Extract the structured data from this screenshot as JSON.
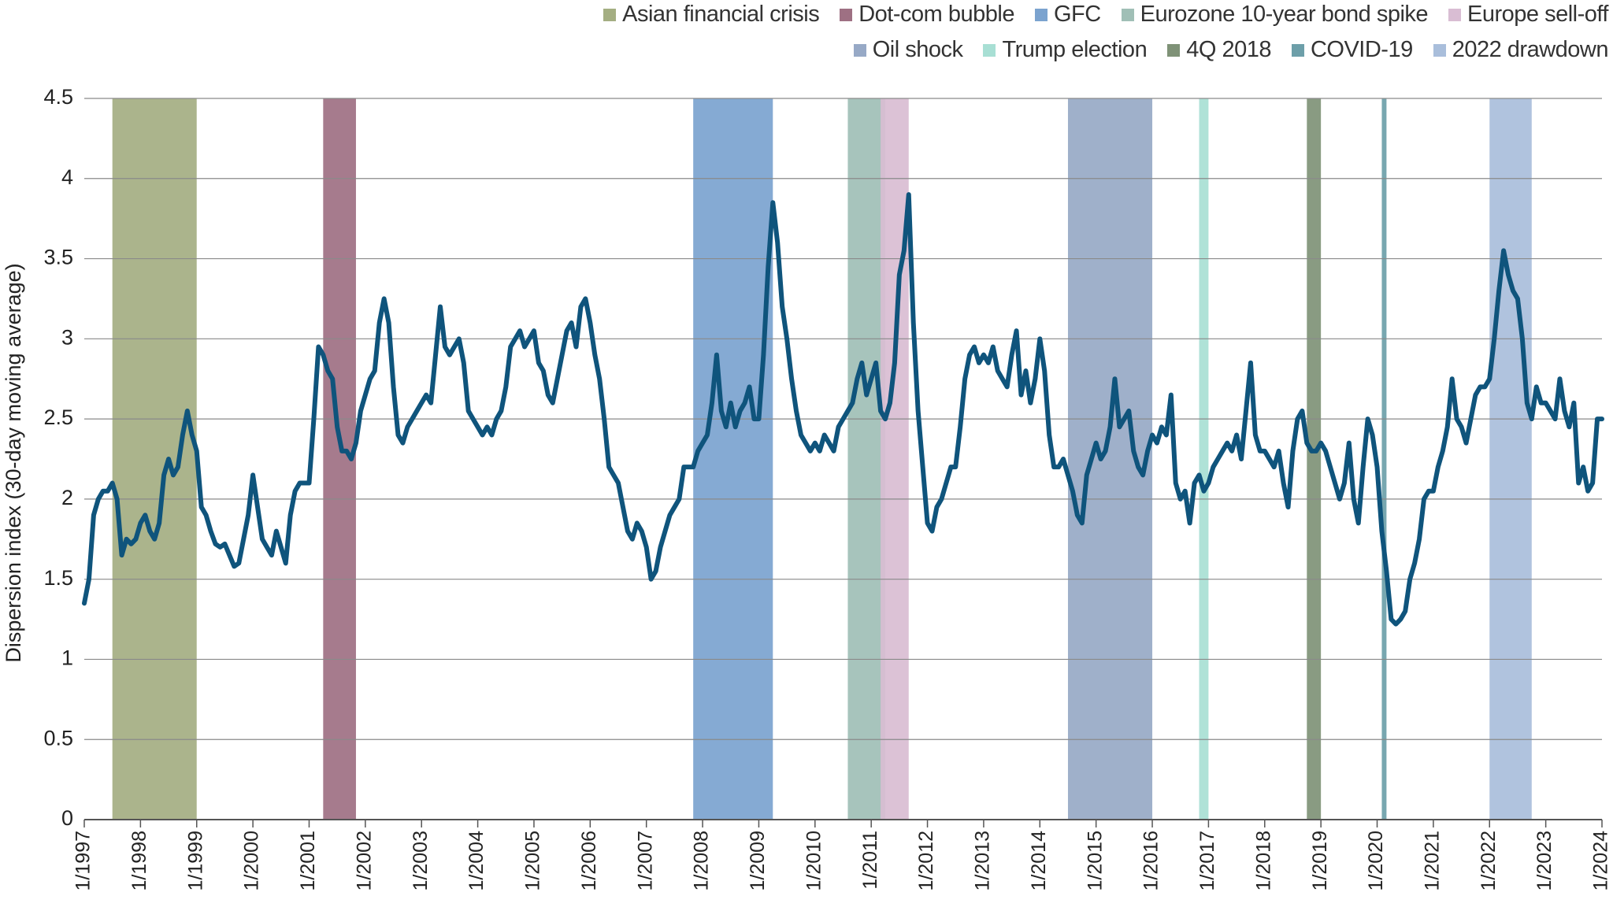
{
  "chart_data": {
    "type": "line",
    "y_label": "Dispersion index (30-day moving average)",
    "color": "#0f547c",
    "xlim": [
      "1997-01",
      "2024-01"
    ],
    "ylim": [
      0,
      4.5
    ],
    "yticks": [
      0,
      0.5,
      1,
      1.5,
      2,
      2.5,
      3,
      3.5,
      4,
      4.5
    ],
    "grid": true,
    "legend": "top-right",
    "xticks": [
      {
        "value": "1997-01",
        "label": "1/1997"
      },
      {
        "value": "1998-01",
        "label": "1/1998"
      },
      {
        "value": "1999-01",
        "label": "1/1999"
      },
      {
        "value": "2000-01",
        "label": "1/2000"
      },
      {
        "value": "2001-01",
        "label": "1/2001"
      },
      {
        "value": "2002-01",
        "label": "1/2002"
      },
      {
        "value": "2003-01",
        "label": "1/2003"
      },
      {
        "value": "2004-01",
        "label": "1/2004"
      },
      {
        "value": "2005-01",
        "label": "1/2005"
      },
      {
        "value": "2006-01",
        "label": "1/2006"
      },
      {
        "value": "2007-01",
        "label": "1/2007"
      },
      {
        "value": "2008-01",
        "label": "1/2008"
      },
      {
        "value": "2009-01",
        "label": "1/2009"
      },
      {
        "value": "2010-01",
        "label": "1/2010"
      },
      {
        "value": "2011-01",
        "label": "1/2011"
      },
      {
        "value": "2012-01",
        "label": "1/2012"
      },
      {
        "value": "2013-01",
        "label": "1/2013"
      },
      {
        "value": "2014-01",
        "label": "1/2014"
      },
      {
        "value": "2015-01",
        "label": "1/2015"
      },
      {
        "value": "2016-01",
        "label": "1/2016"
      },
      {
        "value": "2017-01",
        "label": "1/2017"
      },
      {
        "value": "2018-01",
        "label": "1/2018"
      },
      {
        "value": "2019-01",
        "label": "1/2019"
      },
      {
        "value": "2020-01",
        "label": "1/2020"
      },
      {
        "value": "2021-01",
        "label": "1/2021"
      },
      {
        "value": "2022-01",
        "label": "1/2022"
      },
      {
        "value": "2023-01",
        "label": "1/2023"
      },
      {
        "value": "2024-01",
        "label": "1/2024"
      }
    ],
    "events": [
      {
        "name": "Asian financial crisis",
        "color": "#a4ae82",
        "start": "1997-07",
        "end": "1999-01"
      },
      {
        "name": "Dot-com bubble",
        "color": "#9e7083",
        "start": "2001-04",
        "end": "2001-11"
      },
      {
        "name": "GFC",
        "color": "#7ba3cf",
        "start": "2007-11",
        "end": "2009-04"
      },
      {
        "name": "Eurozone 10-year bond spike",
        "color": "#a0bfb6",
        "start": "2010-08",
        "end": "2011-04"
      },
      {
        "name": "Europe sell-off",
        "color": "#d9bdd3",
        "start": "2011-03",
        "end": "2011-09"
      },
      {
        "name": "Oil shock",
        "color": "#97a9c6",
        "start": "2014-07",
        "end": "2016-01"
      },
      {
        "name": "Trump election",
        "color": "#a8dfd4",
        "start": "2016-11",
        "end": "2017-01"
      },
      {
        "name": "4Q 2018",
        "color": "#7f9277",
        "start": "2018-10",
        "end": "2019-01"
      },
      {
        "name": "COVID-19",
        "color": "#6d9fa9",
        "start": "2020-02",
        "end": "2020-03"
      },
      {
        "name": "2022 drawdown",
        "color": "#a9bedb",
        "start": "2022-01",
        "end": "2022-10"
      }
    ],
    "x": [
      "1997-01",
      "1997-02",
      "1997-03",
      "1997-04",
      "1997-05",
      "1997-06",
      "1997-07",
      "1997-08",
      "1997-09",
      "1997-10",
      "1997-11",
      "1997-12",
      "1998-01",
      "1998-02",
      "1998-03",
      "1998-04",
      "1998-05",
      "1998-06",
      "1998-07",
      "1998-08",
      "1998-09",
      "1998-10",
      "1998-11",
      "1998-12",
      "1999-01",
      "1999-02",
      "1999-03",
      "1999-04",
      "1999-05",
      "1999-06",
      "1999-07",
      "1999-08",
      "1999-09",
      "1999-10",
      "1999-11",
      "1999-12",
      "2000-01",
      "2000-02",
      "2000-03",
      "2000-04",
      "2000-05",
      "2000-06",
      "2000-07",
      "2000-08",
      "2000-09",
      "2000-10",
      "2000-11",
      "2000-12",
      "2001-01",
      "2001-02",
      "2001-03",
      "2001-04",
      "2001-05",
      "2001-06",
      "2001-07",
      "2001-08",
      "2001-09",
      "2001-10",
      "2001-11",
      "2001-12",
      "2002-01",
      "2002-02",
      "2002-03",
      "2002-04",
      "2002-05",
      "2002-06",
      "2002-07",
      "2002-08",
      "2002-09",
      "2002-10",
      "2002-11",
      "2002-12",
      "2003-01",
      "2003-02",
      "2003-03",
      "2003-04",
      "2003-05",
      "2003-06",
      "2003-07",
      "2003-08",
      "2003-09",
      "2003-10",
      "2003-11",
      "2003-12",
      "2004-01",
      "2004-02",
      "2004-03",
      "2004-04",
      "2004-05",
      "2004-06",
      "2004-07",
      "2004-08",
      "2004-09",
      "2004-10",
      "2004-11",
      "2004-12",
      "2005-01",
      "2005-02",
      "2005-03",
      "2005-04",
      "2005-05",
      "2005-06",
      "2005-07",
      "2005-08",
      "2005-09",
      "2005-10",
      "2005-11",
      "2005-12",
      "2006-01",
      "2006-02",
      "2006-03",
      "2006-04",
      "2006-05",
      "2006-06",
      "2006-07",
      "2006-08",
      "2006-09",
      "2006-10",
      "2006-11",
      "2006-12",
      "2007-01",
      "2007-02",
      "2007-03",
      "2007-04",
      "2007-05",
      "2007-06",
      "2007-07",
      "2007-08",
      "2007-09",
      "2007-10",
      "2007-11",
      "2007-12",
      "2008-01",
      "2008-02",
      "2008-03",
      "2008-04",
      "2008-05",
      "2008-06",
      "2008-07",
      "2008-08",
      "2008-09",
      "2008-10",
      "2008-11",
      "2008-12",
      "2009-01",
      "2009-02",
      "2009-03",
      "2009-04",
      "2009-05",
      "2009-06",
      "2009-07",
      "2009-08",
      "2009-09",
      "2009-10",
      "2009-11",
      "2009-12",
      "2010-01",
      "2010-02",
      "2010-03",
      "2010-04",
      "2010-05",
      "2010-06",
      "2010-07",
      "2010-08",
      "2010-09",
      "2010-10",
      "2010-11",
      "2010-12",
      "2011-01",
      "2011-02",
      "2011-03",
      "2011-04",
      "2011-05",
      "2011-06",
      "2011-07",
      "2011-08",
      "2011-09",
      "2011-10",
      "2011-11",
      "2011-12",
      "2012-01",
      "2012-02",
      "2012-03",
      "2012-04",
      "2012-05",
      "2012-06",
      "2012-07",
      "2012-08",
      "2012-09",
      "2012-10",
      "2012-11",
      "2012-12",
      "2013-01",
      "2013-02",
      "2013-03",
      "2013-04",
      "2013-05",
      "2013-06",
      "2013-07",
      "2013-08",
      "2013-09",
      "2013-10",
      "2013-11",
      "2013-12",
      "2014-01",
      "2014-02",
      "2014-03",
      "2014-04",
      "2014-05",
      "2014-06",
      "2014-07",
      "2014-08",
      "2014-09",
      "2014-10",
      "2014-11",
      "2014-12",
      "2015-01",
      "2015-02",
      "2015-03",
      "2015-04",
      "2015-05",
      "2015-06",
      "2015-07",
      "2015-08",
      "2015-09",
      "2015-10",
      "2015-11",
      "2015-12",
      "2016-01",
      "2016-02",
      "2016-03",
      "2016-04",
      "2016-05",
      "2016-06",
      "2016-07",
      "2016-08",
      "2016-09",
      "2016-10",
      "2016-11",
      "2016-12",
      "2017-01",
      "2017-02",
      "2017-03",
      "2017-04",
      "2017-05",
      "2017-06",
      "2017-07",
      "2017-08",
      "2017-09",
      "2017-10",
      "2017-11",
      "2017-12",
      "2018-01",
      "2018-02",
      "2018-03",
      "2018-04",
      "2018-05",
      "2018-06",
      "2018-07",
      "2018-08",
      "2018-09",
      "2018-10",
      "2018-11",
      "2018-12",
      "2019-01",
      "2019-02",
      "2019-03",
      "2019-04",
      "2019-05",
      "2019-06",
      "2019-07",
      "2019-08",
      "2019-09",
      "2019-10",
      "2019-11",
      "2019-12",
      "2020-01",
      "2020-02",
      "2020-03",
      "2020-04",
      "2020-05",
      "2020-06",
      "2020-07",
      "2020-08",
      "2020-09",
      "2020-10",
      "2020-11",
      "2020-12",
      "2021-01",
      "2021-02",
      "2021-03",
      "2021-04",
      "2021-05",
      "2021-06",
      "2021-07",
      "2021-08",
      "2021-09",
      "2021-10",
      "2021-11",
      "2021-12",
      "2022-01",
      "2022-02",
      "2022-03",
      "2022-04",
      "2022-05",
      "2022-06",
      "2022-07",
      "2022-08",
      "2022-09",
      "2022-10",
      "2022-11",
      "2022-12",
      "2023-01",
      "2023-02",
      "2023-03",
      "2023-04",
      "2023-05",
      "2023-06",
      "2023-07",
      "2023-08",
      "2023-09",
      "2023-10",
      "2023-11",
      "2023-12",
      "2024-01"
    ],
    "values": [
      1.35,
      1.5,
      1.9,
      2.0,
      2.05,
      2.05,
      2.1,
      2.0,
      1.65,
      1.75,
      1.72,
      1.75,
      1.85,
      1.9,
      1.8,
      1.75,
      1.85,
      2.15,
      2.25,
      2.15,
      2.2,
      2.4,
      2.55,
      2.4,
      2.3,
      1.95,
      1.9,
      1.8,
      1.72,
      1.7,
      1.72,
      1.65,
      1.58,
      1.6,
      1.75,
      1.9,
      2.15,
      1.95,
      1.75,
      1.7,
      1.65,
      1.8,
      1.7,
      1.6,
      1.9,
      2.05,
      2.1,
      2.1,
      2.1,
      2.5,
      2.95,
      2.9,
      2.8,
      2.75,
      2.45,
      2.3,
      2.3,
      2.25,
      2.35,
      2.55,
      2.65,
      2.75,
      2.8,
      3.1,
      3.25,
      3.1,
      2.7,
      2.4,
      2.35,
      2.45,
      2.5,
      2.55,
      2.6,
      2.65,
      2.6,
      2.9,
      3.2,
      2.95,
      2.9,
      2.95,
      3.0,
      2.85,
      2.55,
      2.5,
      2.45,
      2.4,
      2.45,
      2.4,
      2.5,
      2.55,
      2.7,
      2.95,
      3.0,
      3.05,
      2.95,
      3.0,
      3.05,
      2.85,
      2.8,
      2.65,
      2.6,
      2.75,
      2.9,
      3.05,
      3.1,
      2.95,
      3.2,
      3.25,
      3.1,
      2.9,
      2.75,
      2.5,
      2.2,
      2.15,
      2.1,
      1.95,
      1.8,
      1.75,
      1.85,
      1.8,
      1.7,
      1.5,
      1.55,
      1.7,
      1.8,
      1.9,
      1.95,
      2.0,
      2.2,
      2.2,
      2.2,
      2.3,
      2.35,
      2.4,
      2.6,
      2.9,
      2.55,
      2.45,
      2.6,
      2.45,
      2.55,
      2.6,
      2.7,
      2.5,
      2.5,
      2.9,
      3.45,
      3.85,
      3.6,
      3.2,
      3.0,
      2.75,
      2.55,
      2.4,
      2.35,
      2.3,
      2.35,
      2.3,
      2.4,
      2.35,
      2.3,
      2.45,
      2.5,
      2.55,
      2.6,
      2.75,
      2.85,
      2.65,
      2.75,
      2.85,
      2.55,
      2.5,
      2.6,
      2.85,
      3.4,
      3.55,
      3.9,
      3.1,
      2.55,
      2.2,
      1.85,
      1.8,
      1.95,
      2.0,
      2.1,
      2.2,
      2.2,
      2.45,
      2.75,
      2.9,
      2.95,
      2.85,
      2.9,
      2.85,
      2.95,
      2.8,
      2.75,
      2.7,
      2.9,
      3.05,
      2.65,
      2.8,
      2.6,
      2.75,
      3.0,
      2.8,
      2.4,
      2.2,
      2.2,
      2.25,
      2.15,
      2.05,
      1.9,
      1.85,
      2.15,
      2.25,
      2.35,
      2.25,
      2.3,
      2.45,
      2.75,
      2.45,
      2.5,
      2.55,
      2.3,
      2.2,
      2.15,
      2.3,
      2.4,
      2.35,
      2.45,
      2.4,
      2.65,
      2.1,
      2.0,
      2.05,
      1.85,
      2.1,
      2.15,
      2.05,
      2.1,
      2.2,
      2.25,
      2.3,
      2.35,
      2.3,
      2.4,
      2.25,
      2.55,
      2.85,
      2.4,
      2.3,
      2.3,
      2.25,
      2.2,
      2.3,
      2.1,
      1.95,
      2.3,
      2.5,
      2.55,
      2.35,
      2.3,
      2.3,
      2.35,
      2.3,
      2.2,
      2.1,
      2.0,
      2.1,
      2.35,
      2.0,
      1.85,
      2.2,
      2.5,
      2.4,
      2.2,
      1.8,
      1.55,
      1.25,
      1.22,
      1.25,
      1.3,
      1.5,
      1.6,
      1.75,
      2.0,
      2.05,
      2.05,
      2.2,
      2.3,
      2.45,
      2.75,
      2.5,
      2.45,
      2.35,
      2.5,
      2.65,
      2.7,
      2.7,
      2.75,
      3.0,
      3.3,
      3.55,
      3.4,
      3.3,
      3.25,
      3.0,
      2.6,
      2.5,
      2.7,
      2.6,
      2.6,
      2.55,
      2.5,
      2.75,
      2.55,
      2.45,
      2.6,
      2.1,
      2.2,
      2.05,
      2.1,
      2.5,
      2.5
    ]
  }
}
